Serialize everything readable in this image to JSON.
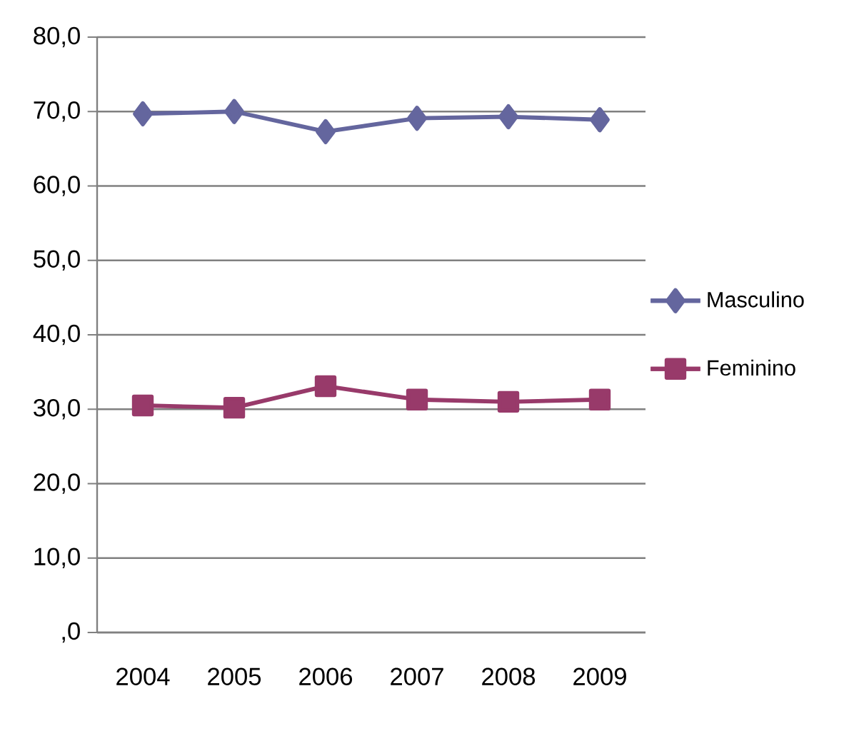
{
  "chart_data": {
    "type": "line",
    "categories": [
      "2004",
      "2005",
      "2006",
      "2007",
      "2008",
      "2009"
    ],
    "series": [
      {
        "name": "Masculino",
        "color": "#64669e",
        "marker": "diamond",
        "values": [
          69.7,
          70.0,
          67.3,
          69.1,
          69.3,
          68.9
        ]
      },
      {
        "name": "Feminino",
        "color": "#983a6a",
        "marker": "square",
        "values": [
          30.5,
          30.2,
          33.1,
          31.3,
          31.0,
          31.3
        ]
      }
    ],
    "ylim": [
      0,
      80
    ],
    "yticks": [
      {
        "value": 0,
        "label": ",0"
      },
      {
        "value": 10,
        "label": "10,0"
      },
      {
        "value": 20,
        "label": "20,0"
      },
      {
        "value": 30,
        "label": "30,0"
      },
      {
        "value": 40,
        "label": "40,0"
      },
      {
        "value": 50,
        "label": "50,0"
      },
      {
        "value": 60,
        "label": "60,0"
      },
      {
        "value": 70,
        "label": "70,0"
      },
      {
        "value": 80,
        "label": "80,0"
      }
    ],
    "grid": "y",
    "legend": "right",
    "line_style": "solid"
  }
}
